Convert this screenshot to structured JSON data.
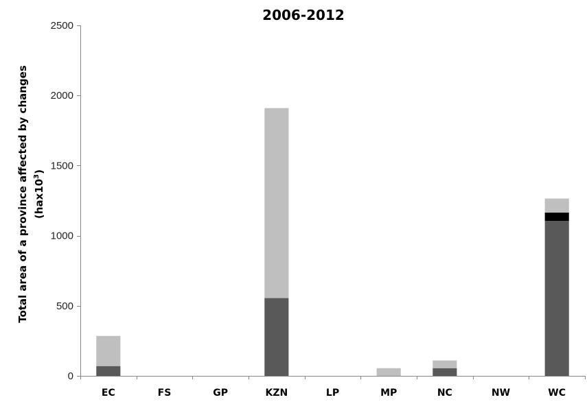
{
  "chart_data": {
    "type": "bar",
    "stacked": true,
    "title": "2006-2012",
    "ylabel_line1": "Total area of a province affected by changes",
    "ylabel_line2_prefix": "(hax10",
    "ylabel_line2_sup": "3",
    "ylabel_line2_suffix": ")",
    "xlabel": "",
    "ylim": [
      0,
      2500
    ],
    "yticks": [
      0,
      500,
      1000,
      1500,
      2000,
      2500
    ],
    "categories": [
      "EC",
      "FS",
      "GP",
      "KZN",
      "LP",
      "MP",
      "NC",
      "NW",
      "WC"
    ],
    "grid": false,
    "legend": "none",
    "series": [
      {
        "color": "#595959",
        "values": [
          70,
          0,
          0,
          555,
          0,
          0,
          55,
          0,
          1105
        ]
      },
      {
        "color": "#000000",
        "values": [
          0,
          0,
          0,
          0,
          0,
          0,
          0,
          0,
          60
        ]
      },
      {
        "color": "#bfbfbf",
        "values": [
          215,
          0,
          0,
          1355,
          0,
          55,
          55,
          0,
          100
        ]
      }
    ]
  }
}
